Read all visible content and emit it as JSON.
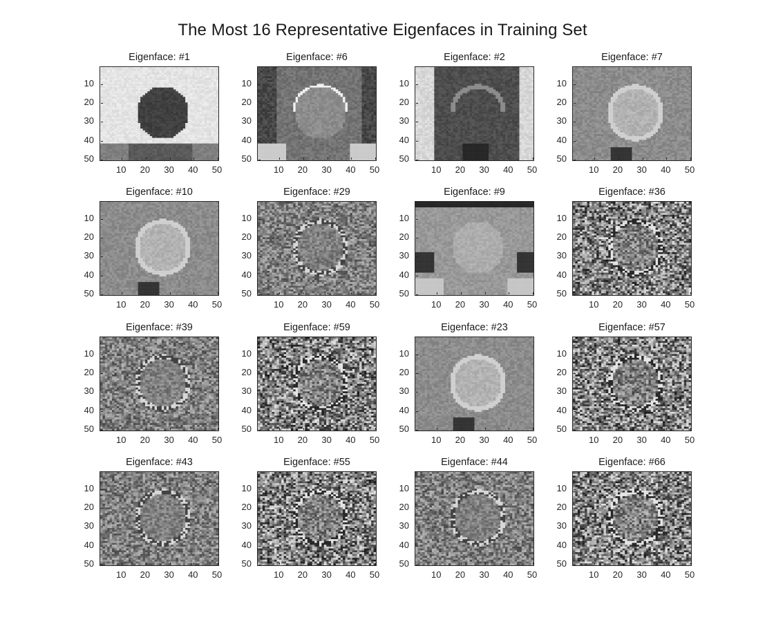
{
  "figure": {
    "title": "The Most 16 Representative Eigenfaces in Training Set"
  },
  "axes": {
    "yticks": [
      "10",
      "20",
      "30",
      "40",
      "50"
    ],
    "xticks": [
      "10",
      "20",
      "30",
      "40",
      "50"
    ],
    "xlim": [
      1,
      50
    ],
    "ylim": [
      1,
      50
    ]
  },
  "panels": [
    {
      "title": "Eigenface: #1",
      "variant": "smooth-dark-face"
    },
    {
      "title": "Eigenface: #6",
      "variant": "bright-hair-dark-sides"
    },
    {
      "title": "Eigenface: #2",
      "variant": "dark-center"
    },
    {
      "title": "Eigenface: #7",
      "variant": "light-face"
    },
    {
      "title": "Eigenface: #10",
      "variant": "light-face"
    },
    {
      "title": "Eigenface: #29",
      "variant": "textured"
    },
    {
      "title": "Eigenface: #9",
      "variant": "light-face-dark-corners"
    },
    {
      "title": "Eigenface: #36",
      "variant": "noisy"
    },
    {
      "title": "Eigenface: #39",
      "variant": "textured"
    },
    {
      "title": "Eigenface: #59",
      "variant": "noisy"
    },
    {
      "title": "Eigenface: #23",
      "variant": "light-face"
    },
    {
      "title": "Eigenface: #57",
      "variant": "noisy"
    },
    {
      "title": "Eigenface: #43",
      "variant": "textured"
    },
    {
      "title": "Eigenface: #55",
      "variant": "noisy"
    },
    {
      "title": "Eigenface: #44",
      "variant": "textured"
    },
    {
      "title": "Eigenface: #66",
      "variant": "noisy"
    }
  ]
}
